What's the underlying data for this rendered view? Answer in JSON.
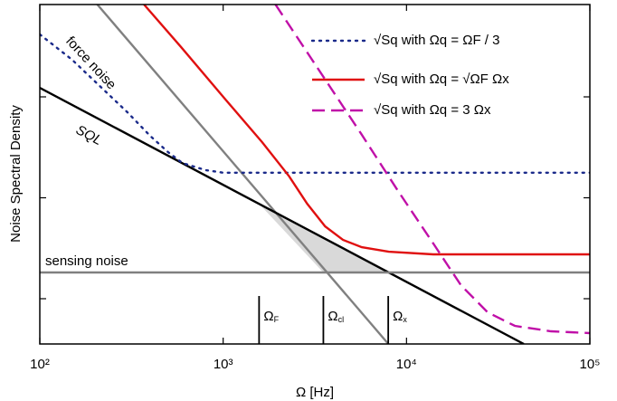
{
  "chart_data": {
    "type": "line",
    "x_label": "Ω [Hz]",
    "y_label": "Noise Spectral Density",
    "log_x": true,
    "log_y": true,
    "xlim": [
      100,
      100000
    ],
    "ylim": [
      0.00356,
      8.22
    ],
    "xticks": [
      {
        "value": 100,
        "label": "10²"
      },
      {
        "value": 1000,
        "label": "10³"
      },
      {
        "value": 10000,
        "label": "10⁴"
      },
      {
        "value": 100000,
        "label": "10⁵"
      }
    ],
    "yticks": [
      0.01,
      0.1,
      1
    ],
    "legend": "upper right",
    "reference_lines": [
      {
        "name": "force noise",
        "color": "#808080",
        "x": [
          206,
          7960
        ],
        "values": [
          8.22,
          0.00356
        ]
      },
      {
        "name": "SQL",
        "color": "#000000",
        "x": [
          100,
          43650
        ],
        "values": [
          1.23,
          0.00356
        ]
      },
      {
        "name": "sensing noise",
        "color": "#808080",
        "x": [
          100,
          100000
        ],
        "values": [
          0.0182,
          0.0182
        ]
      }
    ],
    "series": [
      {
        "name": "√Sq with Ωq = ΩF / 3",
        "color": "#1a2a8a",
        "style": "dotted",
        "x": [
          100,
          150,
          200,
          300,
          400,
          500,
          600,
          800,
          1000,
          100000
        ],
        "values": [
          4.16,
          2.33,
          1.42,
          0.705,
          0.411,
          0.284,
          0.221,
          0.188,
          0.177,
          0.177
        ]
      },
      {
        "name": "√Sq with Ωq = √ΩF Ωx",
        "color": "#e01010",
        "style": "solid",
        "x": [
          370,
          590,
          1030,
          1630,
          2290,
          2870,
          3600,
          4500,
          5700,
          8000,
          14000,
          100000
        ],
        "values": [
          8.22,
          3.11,
          0.94,
          0.356,
          0.163,
          0.0875,
          0.0521,
          0.0383,
          0.0324,
          0.0292,
          0.0275,
          0.0275
        ]
      },
      {
        "name": "√Sq with Ωq = 3 Ωx",
        "color": "#c010a8",
        "style": "dashed",
        "x": [
          1930,
          3220,
          5670,
          8930,
          14100,
          19800,
          27700,
          39000,
          61400,
          100000
        ],
        "values": [
          8.22,
          2.02,
          0.428,
          0.119,
          0.0345,
          0.0136,
          0.00733,
          0.00538,
          0.00475,
          0.00456
        ]
      }
    ],
    "annotations": [
      {
        "symbol": "Ω",
        "sub": "F",
        "x": 1570
      },
      {
        "symbol": "Ω",
        "sub": "cl",
        "x": 3520
      },
      {
        "symbol": "Ω",
        "sub": "x",
        "x": 7950
      }
    ]
  }
}
